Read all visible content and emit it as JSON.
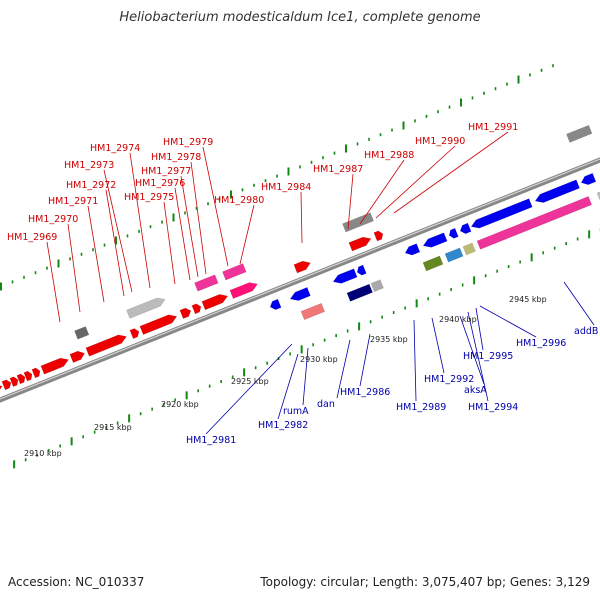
{
  "title": "Heliobacterium modesticaldum Ice1, complete genome",
  "footer": {
    "accession": "Accession: NC_010337",
    "topology": "Topology: circular; Length: 3,075,407 bp; Genes: 3,129"
  },
  "colors": {
    "forward_gene": "#ee0000",
    "reverse_gene": "#0000ee",
    "backbone": "#888888",
    "tick": "#118811",
    "top_label": "#cc0000",
    "bottom_label": "#0000aa"
  },
  "scale_labels": [
    "2910 kbp",
    "2915 kbp",
    "2920 kbp",
    "2925 kbp",
    "2930 kbp",
    "2935 kbp",
    "2940 kbp",
    "2945 kbp"
  ],
  "top_labels": [
    "HM1_2969",
    "HM1_2970",
    "HM1_2971",
    "HM1_2972",
    "HM1_2973",
    "HM1_2974",
    "HM1_2975",
    "HM1_2976",
    "HM1_2977",
    "HM1_2978",
    "HM1_2979",
    "HM1_2980",
    "HM1_2984",
    "HM1_2987",
    "HM1_2988",
    "HM1_2990",
    "HM1_2991"
  ],
  "bottom_labels": [
    "HM1_2981",
    "HM1_2982",
    "rumA",
    "dan",
    "HM1_2986",
    "HM1_2989",
    "HM1_2992",
    "aksA",
    "HM1_2994",
    "HM1_2995",
    "HM1_2996",
    "addB"
  ]
}
